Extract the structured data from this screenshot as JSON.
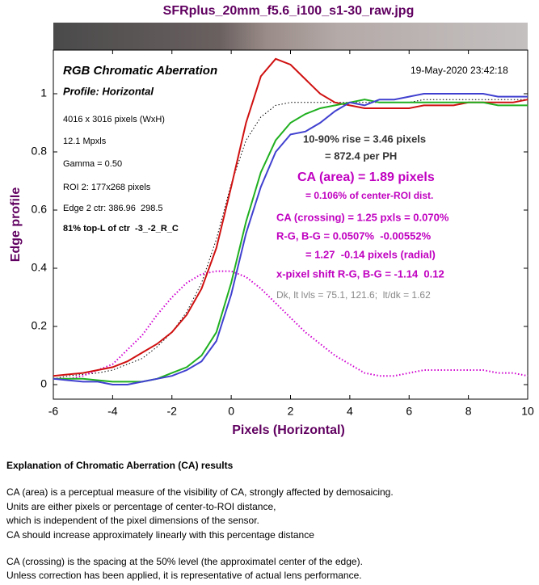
{
  "chart_data": {
    "type": "line",
    "title": "SFRplus_20mm_f5.6_i100_s1-30_raw.jpg",
    "xlabel": "Pixels (Horizontal)",
    "ylabel": "Edge profile",
    "x": [
      -6,
      -5.5,
      -5,
      -4.5,
      -4,
      -3.5,
      -3,
      -2.5,
      -2,
      -1.5,
      -1,
      -0.5,
      0,
      0.5,
      1,
      1.5,
      2,
      2.5,
      3,
      3.5,
      4,
      4.5,
      5,
      5.5,
      6,
      6.5,
      7,
      7.5,
      8,
      8.5,
      9,
      9.5,
      10
    ],
    "series": [
      {
        "color": "#000000",
        "style": "dotted",
        "values": [
          0.02,
          0.03,
          0.035,
          0.04,
          0.05,
          0.07,
          0.09,
          0.13,
          0.18,
          0.25,
          0.35,
          0.5,
          0.69,
          0.84,
          0.92,
          0.96,
          0.97,
          0.97,
          0.97,
          0.97,
          0.97,
          0.97,
          0.97,
          0.97,
          0.97,
          0.98,
          0.98,
          0.98,
          0.98,
          0.98,
          0.98,
          0.98,
          0.98
        ]
      },
      {
        "color": "#d000d0",
        "style": "dotted",
        "values": [
          0.02,
          0.02,
          0.03,
          0.05,
          0.07,
          0.12,
          0.17,
          0.24,
          0.3,
          0.35,
          0.38,
          0.39,
          0.39,
          0.37,
          0.33,
          0.28,
          0.23,
          0.18,
          0.14,
          0.1,
          0.07,
          0.04,
          0.03,
          0.03,
          0.04,
          0.05,
          0.05,
          0.05,
          0.05,
          0.05,
          0.04,
          0.04,
          0.03
        ]
      },
      {
        "color": "#d01010",
        "style": "solid",
        "values": [
          0.03,
          0.035,
          0.04,
          0.05,
          0.06,
          0.08,
          0.11,
          0.14,
          0.18,
          0.24,
          0.33,
          0.47,
          0.68,
          0.9,
          1.06,
          1.12,
          1.1,
          1.05,
          1.0,
          0.97,
          0.96,
          0.95,
          0.95,
          0.95,
          0.95,
          0.96,
          0.96,
          0.96,
          0.97,
          0.97,
          0.97,
          0.97,
          0.98
        ]
      },
      {
        "color": "#20b020",
        "style": "solid",
        "values": [
          0.02,
          0.02,
          0.02,
          0.015,
          0.01,
          0.01,
          0.01,
          0.02,
          0.04,
          0.06,
          0.1,
          0.18,
          0.35,
          0.56,
          0.73,
          0.84,
          0.9,
          0.93,
          0.95,
          0.96,
          0.97,
          0.98,
          0.97,
          0.97,
          0.97,
          0.97,
          0.97,
          0.97,
          0.97,
          0.97,
          0.96,
          0.96,
          0.96
        ]
      },
      {
        "color": "#4040d0",
        "style": "solid",
        "values": [
          0.02,
          0.015,
          0.01,
          0.01,
          0.0,
          0.0,
          0.01,
          0.02,
          0.03,
          0.05,
          0.08,
          0.15,
          0.31,
          0.52,
          0.68,
          0.8,
          0.86,
          0.87,
          0.9,
          0.94,
          0.97,
          0.96,
          0.98,
          0.98,
          0.99,
          1.0,
          1.0,
          1.0,
          1.0,
          1.0,
          0.99,
          0.99,
          0.99
        ]
      }
    ],
    "xlim": [
      -6,
      10
    ],
    "xticks": [
      -6,
      -4,
      -2,
      0,
      2,
      4,
      6,
      8,
      10
    ],
    "ylim": [
      -0.05,
      1.15
    ],
    "yticks": [
      0,
      0.2,
      0.4,
      0.6,
      0.8,
      1
    ],
    "grid": false,
    "annotations": [
      {
        "text": "RGB Chromatic Aberration",
        "color": "#000000"
      },
      {
        "text": "Profile: Horizontal",
        "color": "#000000"
      },
      {
        "text": "19-May-2020 23:42:18",
        "color": "#000000"
      },
      {
        "text": "4016 x 3016 pixels (WxH)",
        "color": "#000000"
      },
      {
        "text": "12.1 Mpxls",
        "color": "#000000"
      },
      {
        "text": "Gamma = 0.50",
        "color": "#000000"
      },
      {
        "text": "ROI 2: 177x268 pixels",
        "color": "#000000"
      },
      {
        "text": "Edge 2 ctr: 386.96  298.5",
        "color": "#000000"
      },
      {
        "text": "81% top-L of ctr  -3_-2_R_C",
        "color": "#000000"
      },
      {
        "text": "10-90% rise = 3.46 pixels",
        "color": "#333333"
      },
      {
        "text": "= 872.4 per PH",
        "color": "#333333"
      },
      {
        "text": "CA (area) = 1.89 pixels",
        "color": "#c000c0"
      },
      {
        "text": "= 0.106% of center-ROI dist.",
        "color": "#c000c0"
      },
      {
        "text": "CA (crossing) = 1.25 pxls = 0.070%",
        "color": "#c000c0"
      },
      {
        "text": "R-G, B-G = 0.0507%  -0.00552%",
        "color": "#c000c0"
      },
      {
        "text": "= 1.27  -0.14 pixels (radial)",
        "color": "#c000c0"
      },
      {
        "text": "x-pixel shift R-G, B-G = -1.14  0.12",
        "color": "#c000c0"
      },
      {
        "text": "Dk, lt lvls = 75.1, 121.6;  lt/dk = 1.62",
        "color": "#888888"
      }
    ]
  },
  "explanation": {
    "heading": "Explanation of Chromatic Aberration (CA) results",
    "paragraphs": [
      [
        "CA (area) is a perceptual measure of the visibility of CA, strongly affected by demosaicing.",
        "Units are either pixels or percentage of center-to-ROI distance,",
        "which is independent of the pixel dimensions of the sensor.",
        "CA should increase approximately linearly with this percentage distance"
      ],
      [
        "CA (crossing) is the spacing at the 50% level (the approximatel center of the edge).",
        "Unless correction has been applied, it is representative of actual lens performance."
      ]
    ]
  }
}
